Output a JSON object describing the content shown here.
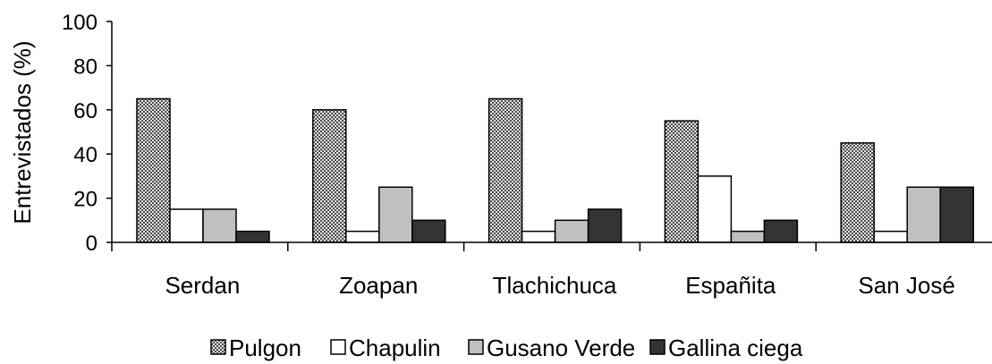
{
  "chart_data": {
    "type": "bar",
    "title": "",
    "xlabel": "",
    "ylabel": "Entrevistados (%)",
    "ylim": [
      0,
      100
    ],
    "yticks": [
      0,
      20,
      40,
      60,
      80,
      100
    ],
    "grid": false,
    "legend_position": "bottom",
    "categories": [
      "Serdan",
      "Zoapan",
      "Tlachichuca",
      "Españita",
      "San José"
    ],
    "series": [
      {
        "name": "Pulgon",
        "values": [
          65,
          60,
          65,
          55,
          45
        ],
        "fill": "pattern-checker",
        "color": "#5a5a5a"
      },
      {
        "name": "Chapulin",
        "values": [
          15,
          5,
          5,
          30,
          5
        ],
        "fill": "solid",
        "color": "#ffffff"
      },
      {
        "name": "Gusano Verde",
        "values": [
          15,
          25,
          10,
          5,
          25
        ],
        "fill": "solid",
        "color": "#c0c0c0"
      },
      {
        "name": "Gallina ciega",
        "values": [
          5,
          10,
          15,
          10,
          25
        ],
        "fill": "solid",
        "color": "#333333"
      }
    ]
  }
}
